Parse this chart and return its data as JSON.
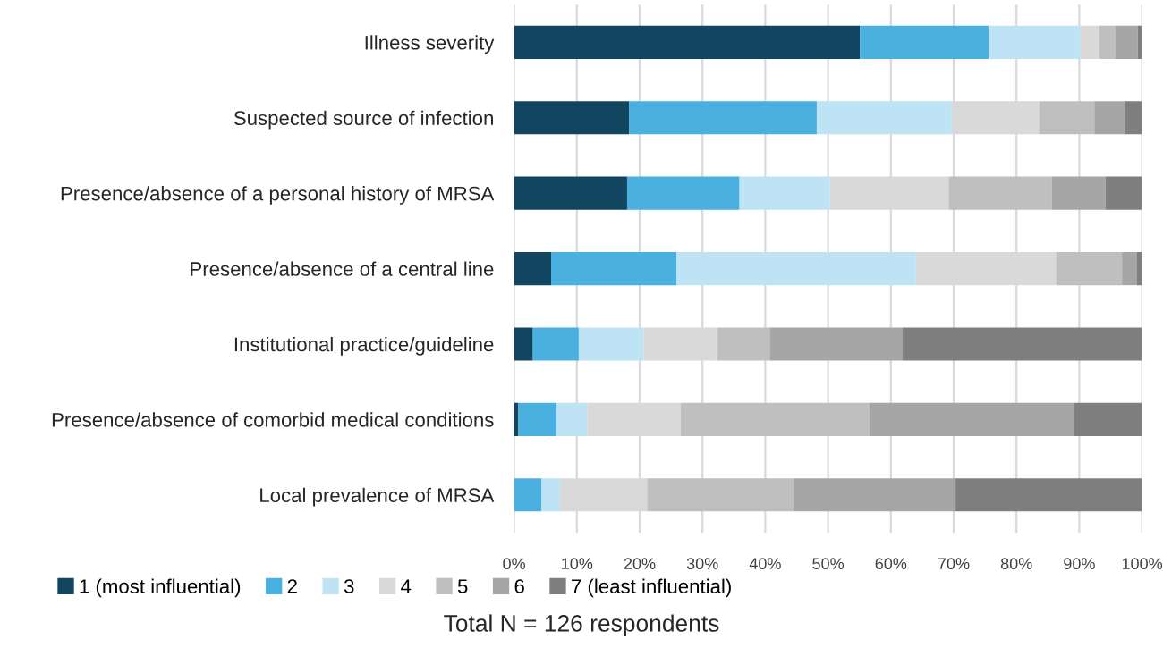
{
  "chart_data": {
    "type": "bar",
    "orientation": "horizontal",
    "stacked": true,
    "categories": [
      "Illness severity",
      "Suspected source of infection",
      "Presence/absence of a personal history of MRSA",
      "Presence/absence of a central line",
      "Institutional practice/guideline",
      "Presence/absence of comorbid medical conditions",
      "Local prevalence of MRSA"
    ],
    "series": [
      {
        "name": "1 (most influential)",
        "color": "#124660",
        "values": [
          55.1,
          18.3,
          18.0,
          5.9,
          3.0,
          0.7,
          0
        ]
      },
      {
        "name": "2",
        "color": "#49b0e0",
        "values": [
          20.5,
          29.9,
          17.9,
          20.0,
          7.3,
          6.1,
          4.4
        ]
      },
      {
        "name": "3",
        "color": "#bde3f5",
        "values": [
          14.6,
          21.5,
          14.4,
          38.1,
          10.3,
          4.9,
          2.9
        ]
      },
      {
        "name": "4",
        "color": "#d9d9d9",
        "values": [
          3.0,
          13.9,
          18.9,
          22.3,
          11.8,
          14.8,
          13.9
        ]
      },
      {
        "name": "5",
        "color": "#bfbfbf",
        "values": [
          2.6,
          8.8,
          16.4,
          10.5,
          8.3,
          30.1,
          23.3
        ]
      },
      {
        "name": "6",
        "color": "#a6a6a6",
        "values": [
          3.5,
          4.9,
          8.6,
          2.4,
          21.1,
          32.5,
          25.8
        ]
      },
      {
        "name": "7 (least influential)",
        "color": "#7f7f7f",
        "values": [
          0.7,
          2.7,
          5.8,
          0.8,
          38.2,
          10.9,
          29.7
        ]
      }
    ],
    "xlim": [
      0,
      100
    ],
    "xticks": [
      {
        "value": 0,
        "label": "0%"
      },
      {
        "value": 10,
        "label": "10%"
      },
      {
        "value": 20,
        "label": "20%"
      },
      {
        "value": 30,
        "label": "30%"
      },
      {
        "value": 40,
        "label": "40%"
      },
      {
        "value": 50,
        "label": "50%"
      },
      {
        "value": 60,
        "label": "60%"
      },
      {
        "value": 70,
        "label": "70%"
      },
      {
        "value": 80,
        "label": "80%"
      },
      {
        "value": 90,
        "label": "90%"
      },
      {
        "value": 100,
        "label": "100%"
      }
    ],
    "grid": "x",
    "legend": "bottom",
    "annotations": [
      "Total N = 126 respondents"
    ]
  }
}
